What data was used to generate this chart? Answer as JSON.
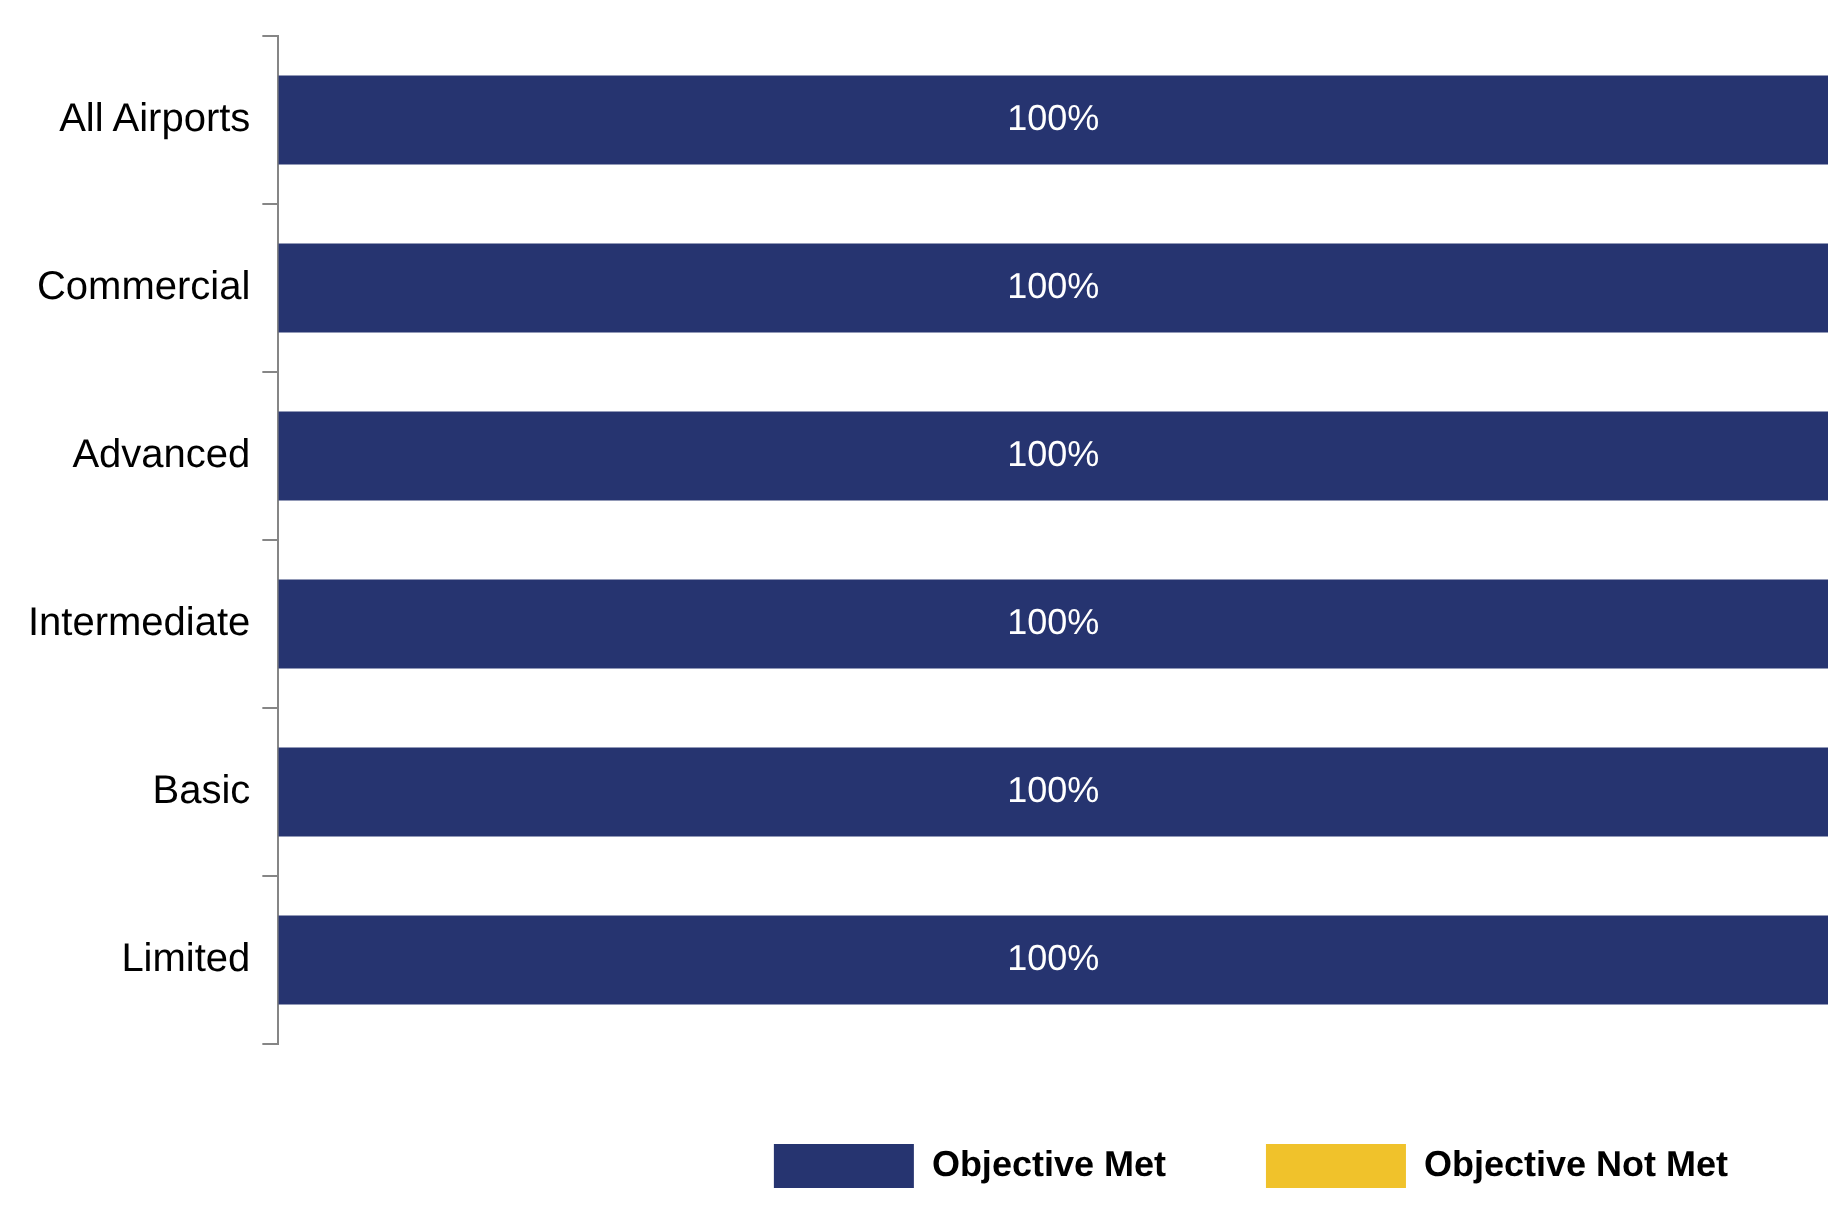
{
  "chart_data": {
    "type": "bar",
    "orientation": "horizontal",
    "stacked": true,
    "categories": [
      "All Airports",
      "Commercial",
      "Advanced",
      "Intermediate",
      "Basic",
      "Limited"
    ],
    "series": [
      {
        "name": "Objective Met",
        "color": "#263470",
        "values": [
          100,
          100,
          100,
          100,
          100,
          100
        ],
        "value_labels": [
          "100%",
          "100%",
          "100%",
          "100%",
          "100%",
          "100%"
        ]
      },
      {
        "name": "Objective Not Met",
        "color": "#f0c22b",
        "values": [
          0,
          0,
          0,
          0,
          0,
          0
        ]
      }
    ],
    "tick_labels": "y",
    "legend": "bottom"
  }
}
